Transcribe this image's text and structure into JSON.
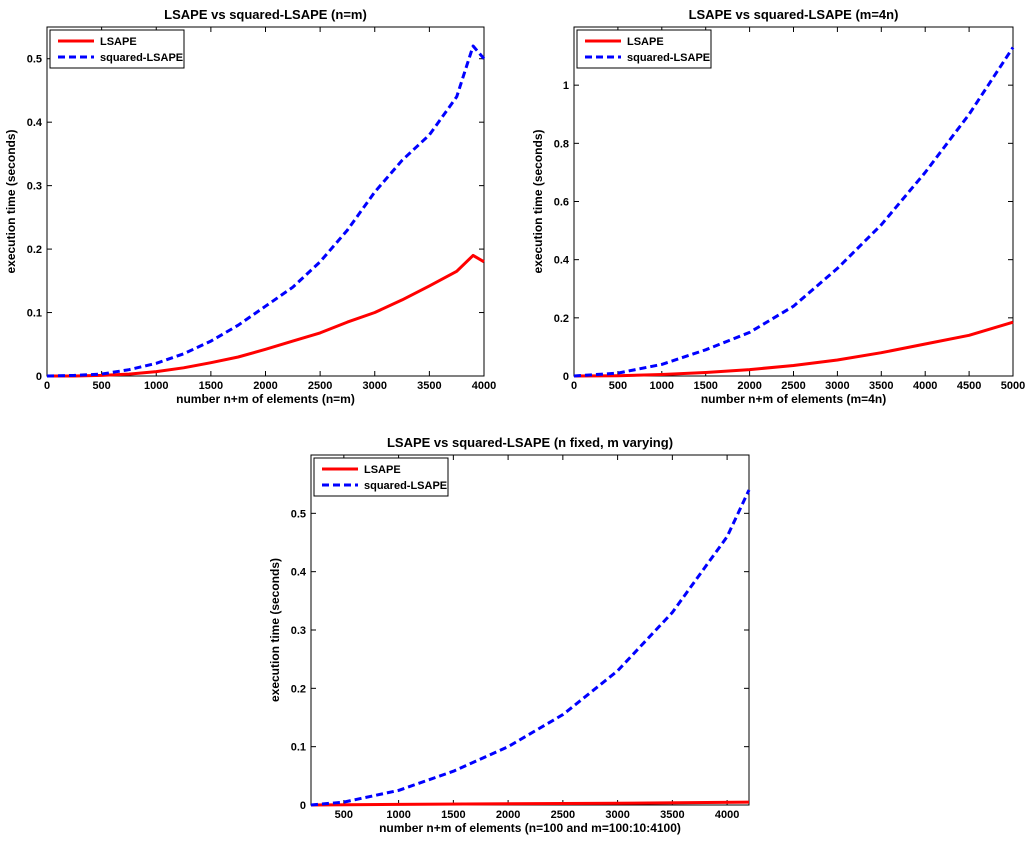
{
  "chart_data": [
    {
      "type": "line",
      "title": "LSAPE vs squared-LSAPE (n=m)",
      "xlabel": "number n+m of elements (n=m)",
      "ylabel": "execution time (seconds)",
      "xlim": [
        0,
        4000
      ],
      "ylim": [
        0,
        0.55
      ],
      "xticks": [
        0,
        500,
        1000,
        1500,
        2000,
        2500,
        3000,
        3500,
        4000
      ],
      "yticks": [
        0,
        0.1,
        0.2,
        0.3,
        0.4,
        0.5
      ],
      "legend": "top-left",
      "grid": false,
      "series": [
        {
          "name": "LSAPE",
          "color": "#ff0000",
          "style": "solid",
          "x": [
            0,
            250,
            500,
            750,
            1000,
            1250,
            1500,
            1750,
            2000,
            2250,
            2500,
            2750,
            3000,
            3250,
            3500,
            3750,
            3900,
            4000
          ],
          "y": [
            0,
            0,
            0.001,
            0.003,
            0.007,
            0.013,
            0.021,
            0.03,
            0.042,
            0.055,
            0.068,
            0.085,
            0.1,
            0.12,
            0.142,
            0.165,
            0.19,
            0.18
          ]
        },
        {
          "name": "squared-LSAPE",
          "color": "#0000ff",
          "style": "dashed",
          "x": [
            0,
            250,
            500,
            750,
            1000,
            1250,
            1500,
            1750,
            2000,
            2250,
            2500,
            2750,
            3000,
            3250,
            3500,
            3750,
            3900,
            4000
          ],
          "y": [
            0,
            0.001,
            0.003,
            0.01,
            0.02,
            0.035,
            0.055,
            0.08,
            0.11,
            0.14,
            0.18,
            0.23,
            0.29,
            0.34,
            0.38,
            0.44,
            0.52,
            0.5
          ]
        }
      ]
    },
    {
      "type": "line",
      "title": "LSAPE vs squared-LSAPE (m=4n)",
      "xlabel": "number n+m of elements (m=4n)",
      "ylabel": "execution time (seconds)",
      "xlim": [
        0,
        5000
      ],
      "ylim": [
        0,
        1.2
      ],
      "xticks": [
        0,
        500,
        1000,
        1500,
        2000,
        2500,
        3000,
        3500,
        4000,
        4500,
        5000
      ],
      "yticks": [
        0,
        0.2,
        0.4,
        0.6,
        0.8,
        1
      ],
      "legend": "top-left",
      "grid": false,
      "series": [
        {
          "name": "LSAPE",
          "color": "#ff0000",
          "style": "solid",
          "x": [
            0,
            500,
            1000,
            1500,
            2000,
            2500,
            3000,
            3500,
            4000,
            4500,
            5000
          ],
          "y": [
            0,
            0.001,
            0.005,
            0.012,
            0.022,
            0.036,
            0.055,
            0.08,
            0.11,
            0.14,
            0.185
          ]
        },
        {
          "name": "squared-LSAPE",
          "color": "#0000ff",
          "style": "dashed",
          "x": [
            0,
            500,
            1000,
            1500,
            2000,
            2500,
            3000,
            3500,
            4000,
            4500,
            5000
          ],
          "y": [
            0,
            0.01,
            0.04,
            0.09,
            0.15,
            0.24,
            0.37,
            0.52,
            0.7,
            0.9,
            1.13
          ]
        }
      ]
    },
    {
      "type": "line",
      "title": "LSAPE vs squared-LSAPE (n fixed, m varying)",
      "xlabel": "number n+m of elements (n=100 and m=100:10:4100)",
      "ylabel": "execution time (seconds)",
      "xlim": [
        200,
        4200
      ],
      "ylim": [
        0,
        0.6
      ],
      "xticks": [
        500,
        1000,
        1500,
        2000,
        2500,
        3000,
        3500,
        4000
      ],
      "yticks": [
        0,
        0.1,
        0.2,
        0.3,
        0.4,
        0.5
      ],
      "legend": "top-left",
      "grid": false,
      "series": [
        {
          "name": "LSAPE",
          "color": "#ff0000",
          "style": "solid",
          "x": [
            200,
            1000,
            2000,
            3000,
            4200
          ],
          "y": [
            0,
            0.001,
            0.002,
            0.003,
            0.005
          ]
        },
        {
          "name": "squared-LSAPE",
          "color": "#0000ff",
          "style": "dashed",
          "x": [
            200,
            500,
            1000,
            1500,
            2000,
            2500,
            3000,
            3500,
            4000,
            4200
          ],
          "y": [
            0,
            0.005,
            0.025,
            0.058,
            0.1,
            0.155,
            0.23,
            0.33,
            0.46,
            0.54
          ]
        }
      ]
    }
  ]
}
